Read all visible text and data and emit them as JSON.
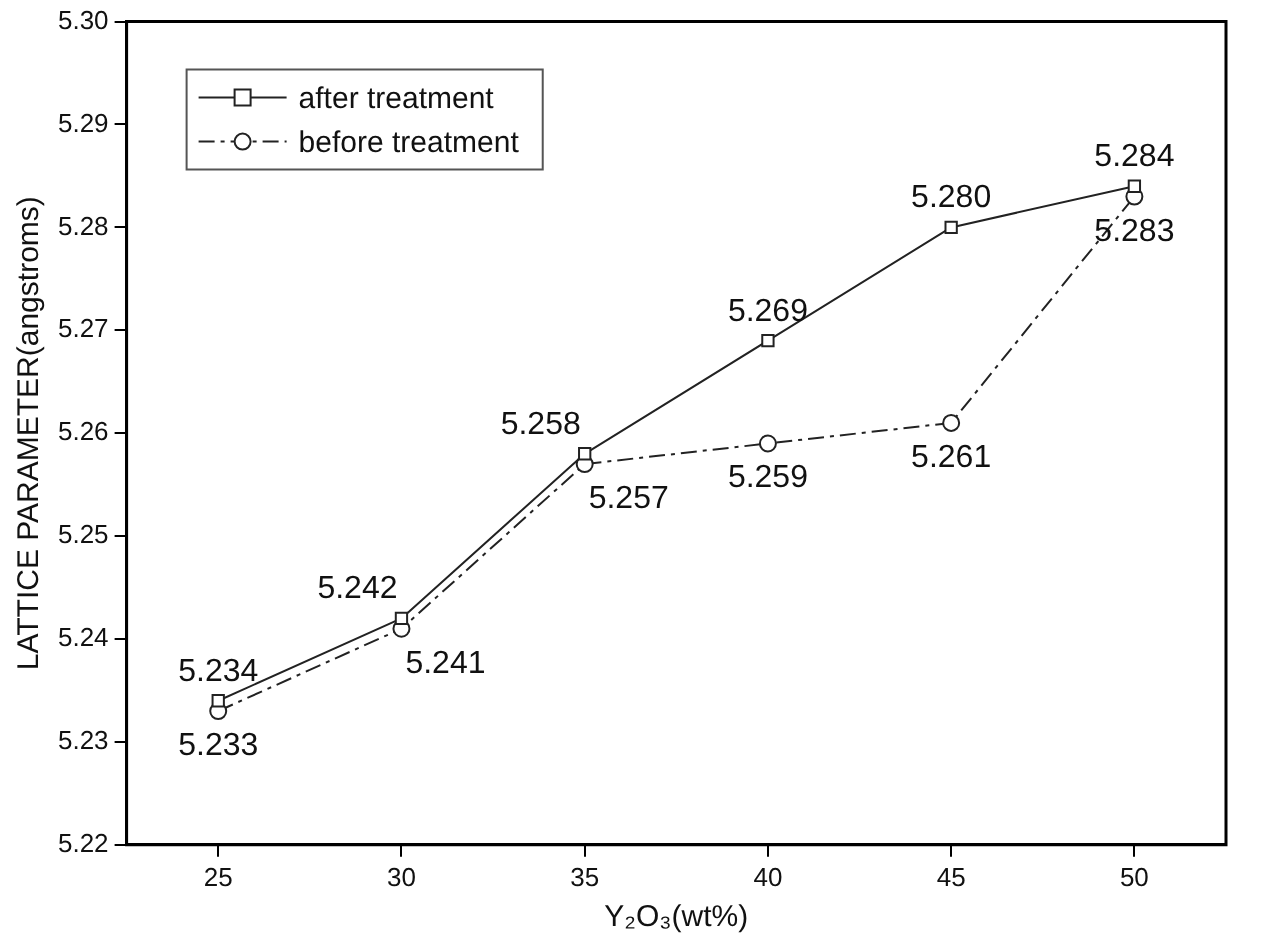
{
  "chart_data": {
    "type": "line",
    "xlabel": "Y₂O₃(wt%)",
    "ylabel": "LATTICE PARAMETER(angstroms)",
    "x": [
      25,
      30,
      35,
      40,
      45,
      50
    ],
    "series": [
      {
        "name": "after treatment",
        "color": "#222222",
        "values": [
          5.234,
          5.242,
          5.258,
          5.269,
          5.28,
          5.284
        ],
        "value_labels": [
          "5.234",
          "5.242",
          "5.258",
          "5.269",
          "5.280",
          "5.284"
        ],
        "marker": "square",
        "line_style": "solid"
      },
      {
        "name": "before treatment",
        "color": "#222222",
        "values": [
          5.233,
          5.241,
          5.257,
          5.259,
          5.261,
          5.283
        ],
        "value_labels": [
          "5.233",
          "5.241",
          "5.257",
          "5.259",
          "5.261",
          "5.283"
        ],
        "marker": "circle",
        "line_style": "dashed"
      }
    ],
    "xlim": [
      22.5,
      52.5
    ],
    "xticks": [
      25,
      30,
      35,
      40,
      45,
      50
    ],
    "ylim": [
      5.22,
      5.3
    ],
    "yticks": [
      5.22,
      5.23,
      5.24,
      5.25,
      5.26,
      5.27,
      5.28,
      5.29,
      {
        "value": 5.3,
        "label": "5.30"
      }
    ],
    "grid": false,
    "legend": "top left"
  }
}
